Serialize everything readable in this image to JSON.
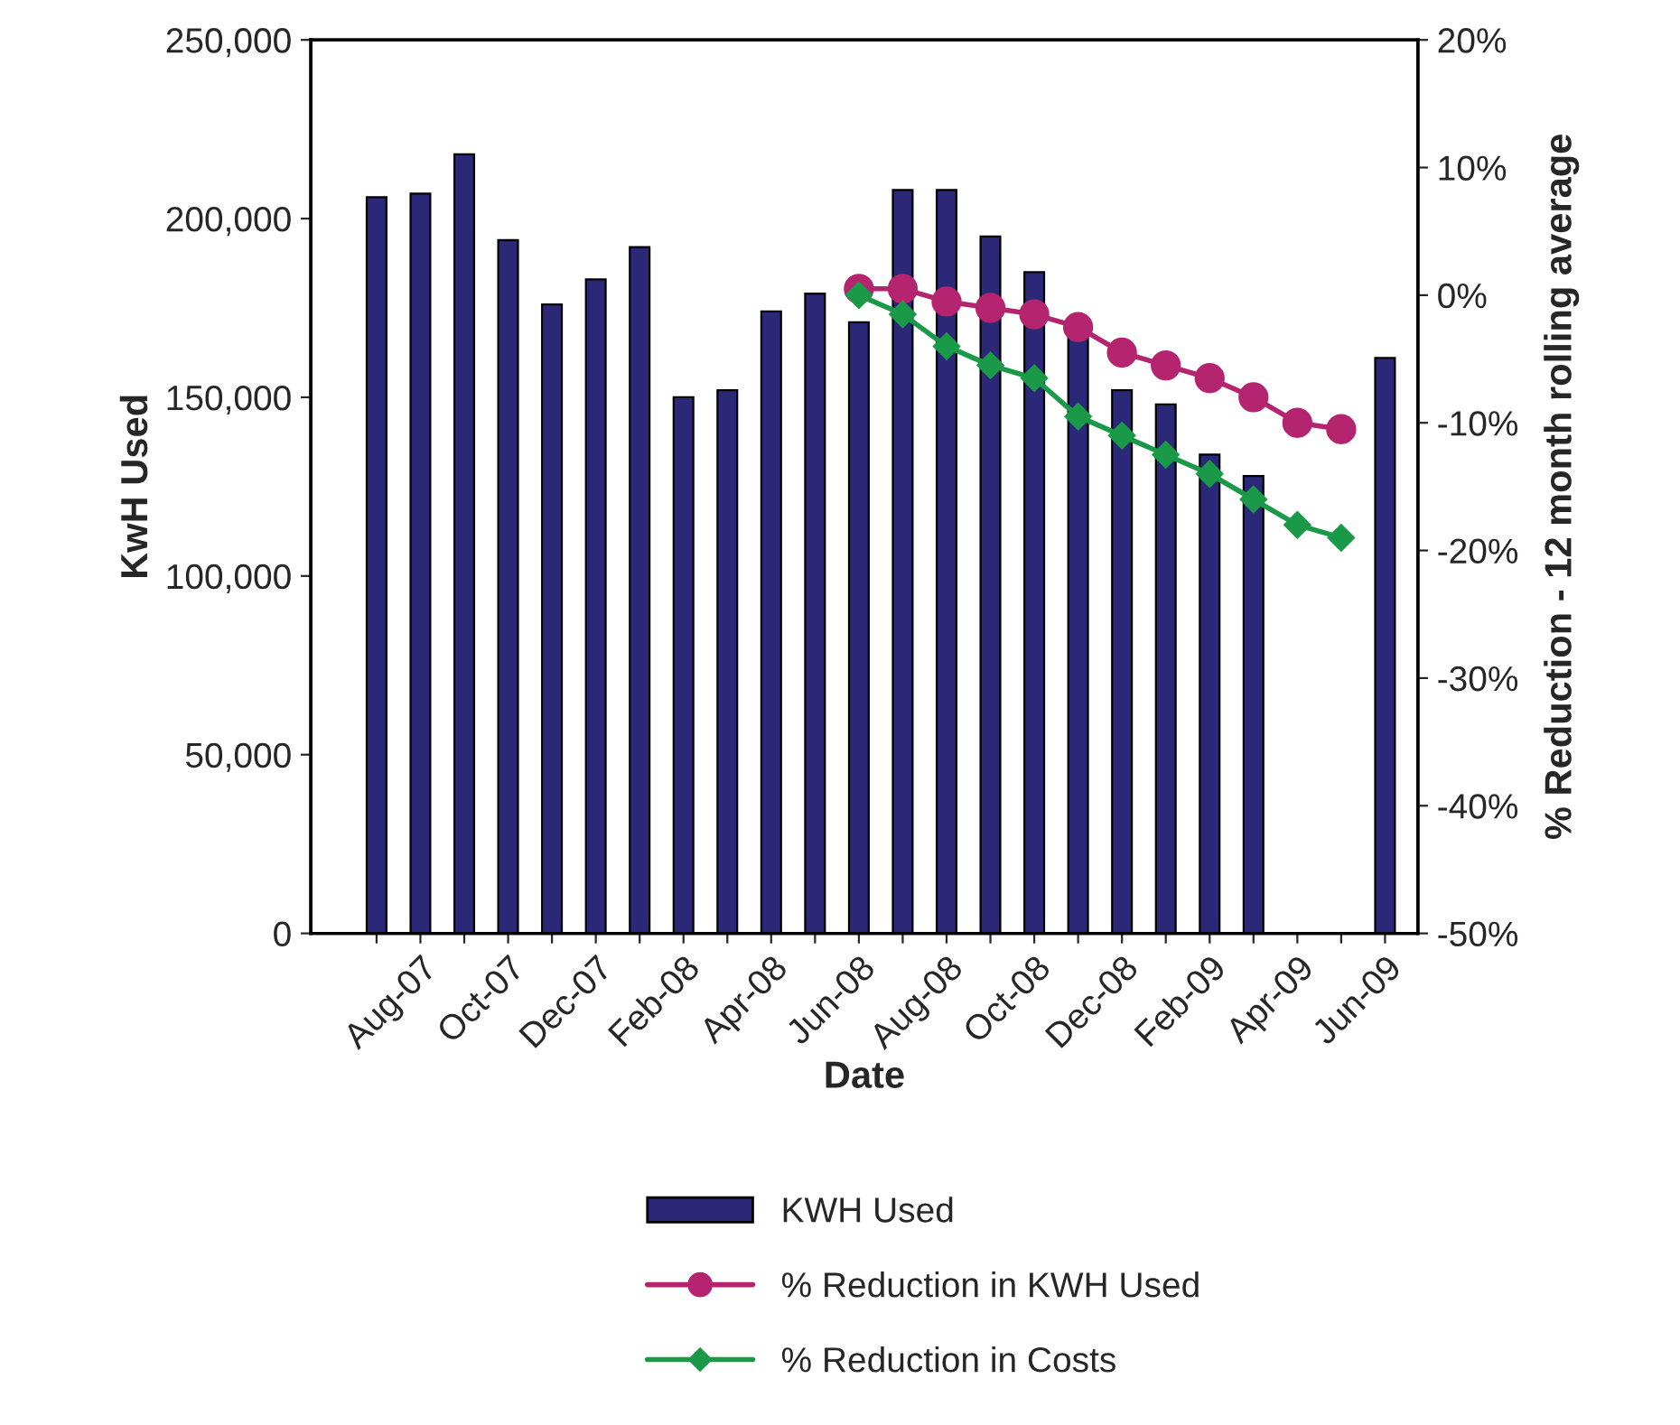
{
  "chart_data": {
    "type": "bar",
    "xlabel": "Date",
    "ylabel": "KwH Used",
    "y2label": "% Reduction - 12 month rolling average",
    "categories": [
      null,
      "Aug-07",
      null,
      "Oct-07",
      null,
      "Dec-07",
      null,
      "Feb-08",
      null,
      "Apr-08",
      null,
      "Jun-08",
      null,
      "Aug-08",
      null,
      "Oct-08",
      null,
      "Dec-08",
      null,
      "Feb-09",
      null,
      "Apr-09",
      null,
      "Jun-09"
    ],
    "series": [
      {
        "name": "KWH Used",
        "color": "#2b2878",
        "values": [
          206000,
          207000,
          218000,
          194000,
          176000,
          183000,
          192000,
          150000,
          152000,
          174000,
          179000,
          171000,
          208000,
          208000,
          195000,
          185000,
          167000,
          152000,
          148000,
          134000,
          128000,
          null,
          null,
          161000
        ]
      },
      {
        "name": "% Reduction in KWH Used",
        "type": "line",
        "axis": "y2",
        "color": "#b5246e",
        "marker": "circle",
        "values": [
          null,
          null,
          null,
          null,
          null,
          null,
          null,
          null,
          null,
          null,
          null,
          0.5,
          0.5,
          -0.5,
          -1,
          -1.5,
          -2.5,
          -4.5,
          -5.5,
          -6.5,
          -8,
          -10,
          -10.5,
          null
        ]
      },
      {
        "name": "% Reduction in Costs",
        "type": "line",
        "axis": "y2",
        "color": "#1a9a48",
        "marker": "diamond",
        "values": [
          null,
          null,
          null,
          null,
          null,
          null,
          null,
          null,
          null,
          null,
          null,
          0,
          -1.5,
          -4,
          -5.5,
          -6.5,
          -9.5,
          -11,
          -12.5,
          -14,
          -16,
          -18,
          -19,
          null
        ]
      }
    ],
    "ylim": [
      0,
      250000
    ],
    "yticks": [
      {
        "value": 0,
        "label": "0"
      },
      {
        "value": 50000,
        "label": "50,000"
      },
      {
        "value": 100000,
        "label": "100,000"
      },
      {
        "value": 150000,
        "label": "150,000"
      },
      {
        "value": 200000,
        "label": "200,000"
      },
      {
        "value": 250000,
        "label": "250,000"
      }
    ],
    "y2lim": [
      -50,
      20
    ],
    "y2ticks": [
      {
        "value": -50,
        "label": "-50%"
      },
      {
        "value": -40,
        "label": "-40%"
      },
      {
        "value": -30,
        "label": "-30%"
      },
      {
        "value": -20,
        "label": "-20%"
      },
      {
        "value": -10,
        "label": "-10%"
      },
      {
        "value": 0,
        "label": "0%"
      },
      {
        "value": 10,
        "label": "10%"
      },
      {
        "value": 20,
        "label": "20%"
      }
    ],
    "grid": false,
    "legend": "bottom"
  }
}
